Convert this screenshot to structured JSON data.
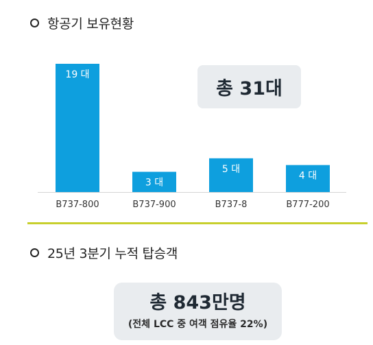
{
  "section1": {
    "title": "항공기 보유현황"
  },
  "section2": {
    "title": "25년 3분기 누적 탑승객"
  },
  "total_fleet": "총 31대",
  "passengers": {
    "main": "총 843만명",
    "sub": "(전체 LCC 중 여객 점유율 22%)"
  },
  "colors": {
    "bar": "#0e9fde",
    "divider": "#c7cf2c",
    "box_bg": "#e9ecef"
  },
  "chart_data": {
    "type": "bar",
    "categories": [
      "B737-800",
      "B737-900",
      "B737-8",
      "B777-200"
    ],
    "values": [
      19,
      3,
      5,
      4
    ],
    "data_labels": [
      "19 대",
      "3 대",
      "5 대",
      "4 대"
    ],
    "title": "",
    "xlabel": "",
    "ylabel": "",
    "ylim": [
      0,
      19
    ]
  }
}
